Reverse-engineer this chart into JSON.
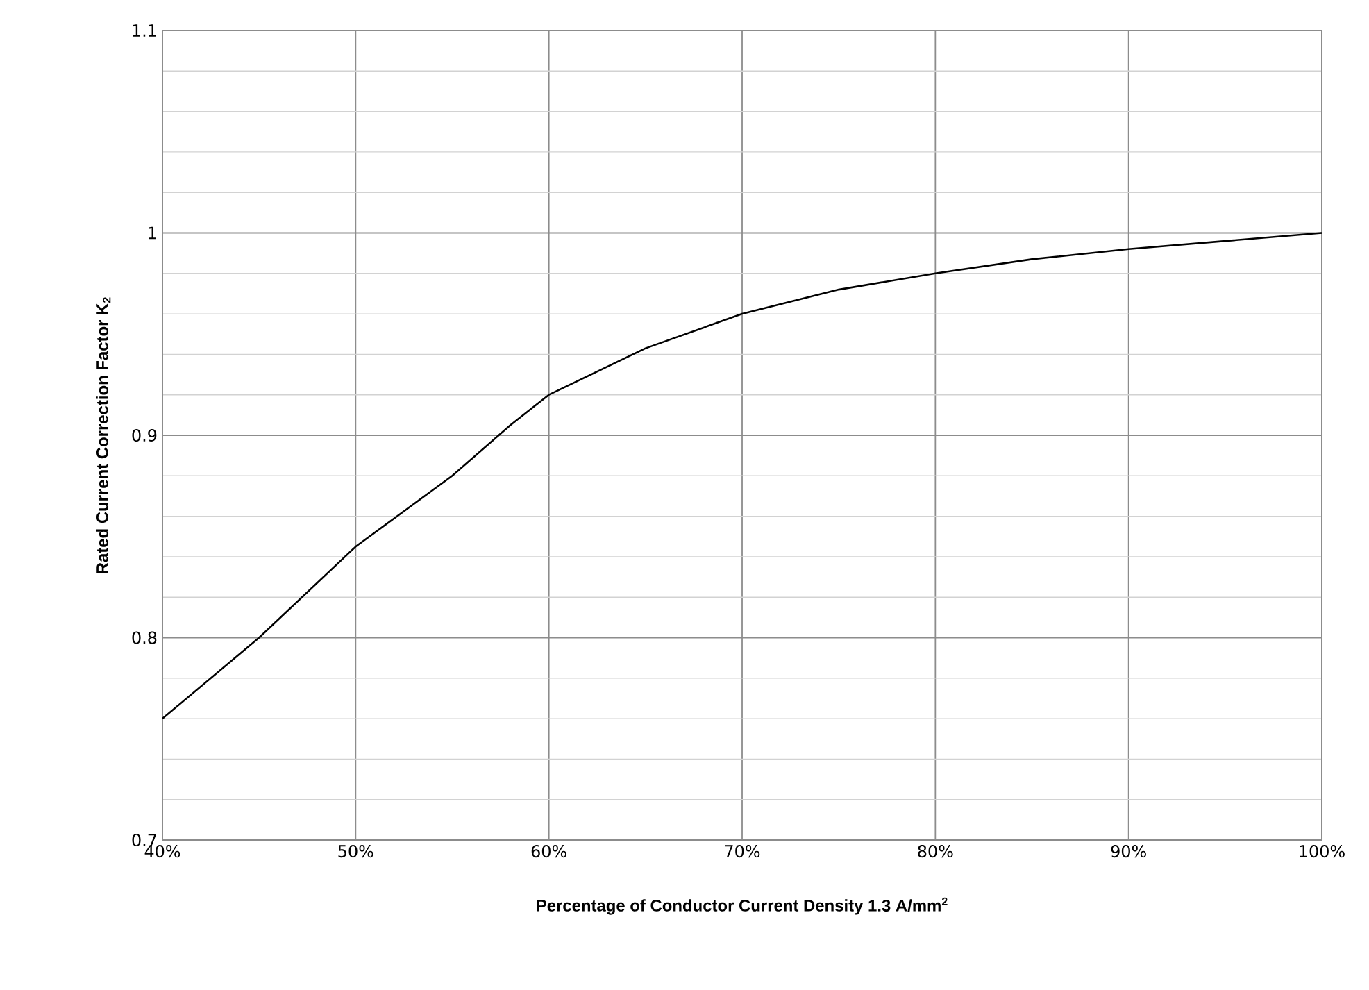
{
  "chart_data": {
    "type": "line",
    "xlabel": "Percentage of Conductor Current Density 1.3 A/mm$^{2}$",
    "ylabel": "Rated Current Correction Factor K$_{2}$",
    "x": [
      40,
      45,
      50,
      55,
      58,
      60,
      65,
      70,
      75,
      80,
      85,
      90,
      95,
      100
    ],
    "series": [
      {
        "color": "#000000",
        "values": [
          0.76,
          0.8,
          0.845,
          0.88,
          0.905,
          0.92,
          0.943,
          0.96,
          0.972,
          0.98,
          0.987,
          0.992,
          0.996,
          1.0
        ]
      }
    ],
    "xlim": [
      40,
      100
    ],
    "xticks": [
      {
        "value": 40,
        "label": "40%"
      },
      {
        "value": 50,
        "label": "50%"
      },
      {
        "value": 60,
        "label": "60%"
      },
      {
        "value": 70,
        "label": "70%"
      },
      {
        "value": 80,
        "label": "80%"
      },
      {
        "value": 90,
        "label": "90%"
      },
      {
        "value": 100,
        "label": "100%"
      }
    ],
    "ylim": [
      0.7,
      1.1
    ],
    "yticks": [
      0.7,
      {
        "value": 0.72,
        "label": null
      },
      {
        "value": 0.74,
        "label": null
      },
      {
        "value": 0.76,
        "label": null
      },
      {
        "value": 0.78,
        "label": null
      },
      0.8,
      {
        "value": 0.82,
        "label": null
      },
      {
        "value": 0.84,
        "label": null
      },
      {
        "value": 0.86,
        "label": null
      },
      {
        "value": 0.88,
        "label": null
      },
      0.9,
      {
        "value": 0.92,
        "label": null
      },
      {
        "value": 0.94,
        "label": null
      },
      {
        "value": 0.96,
        "label": null
      },
      {
        "value": 0.98,
        "label": null
      },
      1,
      {
        "value": 1.02,
        "label": null
      },
      {
        "value": 1.04,
        "label": null
      },
      {
        "value": 1.06,
        "label": null
      },
      {
        "value": 1.08,
        "label": null
      },
      1.1
    ],
    "grid": true,
    "marker": "none",
    "line_style": "solid"
  }
}
